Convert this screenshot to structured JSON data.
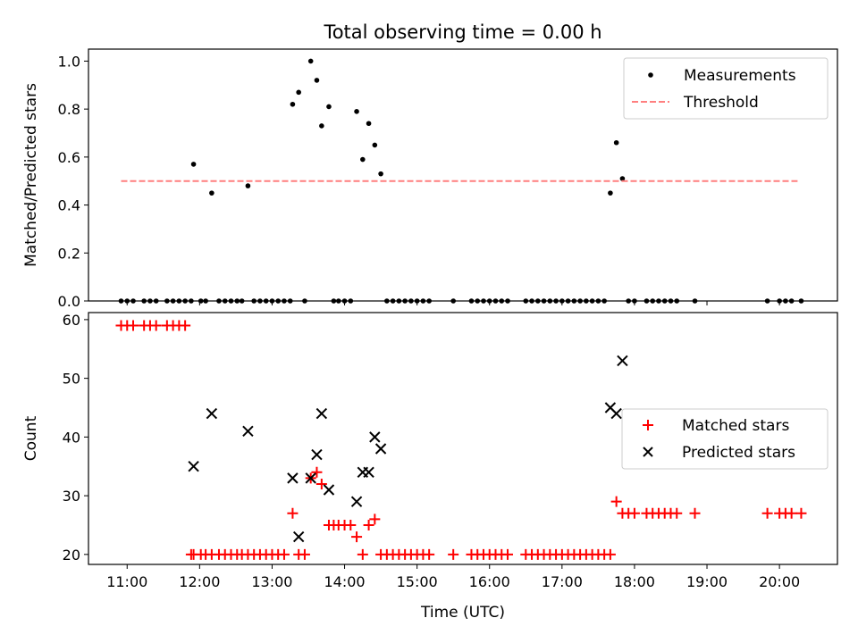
{
  "figure": {
    "title": "Total observing time = 0.00 h"
  },
  "chart_data": [
    {
      "type": "scatter",
      "title": "Total observing time = 0.00 h",
      "ylabel": "Matched/Predicted stars",
      "xlabel": "",
      "xlim": [
        "10:28",
        "20:48"
      ],
      "ylim": [
        0,
        1.05
      ],
      "yticks": [
        0.0,
        0.2,
        0.4,
        0.6,
        0.8,
        1.0
      ],
      "ytick_labels": [
        "0.0",
        "0.2",
        "0.4",
        "0.6",
        "0.8",
        "1.0"
      ],
      "xticks": [
        "11:00",
        "12:00",
        "13:00",
        "14:00",
        "15:00",
        "16:00",
        "17:00",
        "18:00",
        "19:00",
        "20:00"
      ],
      "show_xtick_labels": false,
      "legend": {
        "position": "upper right",
        "entries": [
          "Measurements",
          "Threshold"
        ]
      },
      "series": [
        {
          "name": "Measurements",
          "kind": "scatter",
          "color": "#000000",
          "points": [
            {
              "x": "10:55",
              "y": 0.0
            },
            {
              "x": "11:00",
              "y": 0.0
            },
            {
              "x": "11:05",
              "y": 0.0
            },
            {
              "x": "11:14",
              "y": 0.0
            },
            {
              "x": "11:19",
              "y": 0.0
            },
            {
              "x": "11:24",
              "y": 0.0
            },
            {
              "x": "11:33",
              "y": 0.0
            },
            {
              "x": "11:38",
              "y": 0.0
            },
            {
              "x": "11:43",
              "y": 0.0
            },
            {
              "x": "11:48",
              "y": 0.0
            },
            {
              "x": "11:53",
              "y": 0.0
            },
            {
              "x": "11:55",
              "y": 0.57
            },
            {
              "x": "12:01",
              "y": 0.0
            },
            {
              "x": "12:05",
              "y": 0.0
            },
            {
              "x": "12:10",
              "y": 0.45
            },
            {
              "x": "12:16",
              "y": 0.0
            },
            {
              "x": "12:21",
              "y": 0.0
            },
            {
              "x": "12:26",
              "y": 0.0
            },
            {
              "x": "12:31",
              "y": 0.0
            },
            {
              "x": "12:35",
              "y": 0.0
            },
            {
              "x": "12:40",
              "y": 0.48
            },
            {
              "x": "12:45",
              "y": 0.0
            },
            {
              "x": "12:50",
              "y": 0.0
            },
            {
              "x": "12:55",
              "y": 0.0
            },
            {
              "x": "13:00",
              "y": 0.0
            },
            {
              "x": "13:05",
              "y": 0.0
            },
            {
              "x": "13:10",
              "y": 0.0
            },
            {
              "x": "13:15",
              "y": 0.0
            },
            {
              "x": "13:17",
              "y": 0.82
            },
            {
              "x": "13:22",
              "y": 0.87
            },
            {
              "x": "13:27",
              "y": 0.0
            },
            {
              "x": "13:32",
              "y": 1.0
            },
            {
              "x": "13:37",
              "y": 0.92
            },
            {
              "x": "13:41",
              "y": 0.73
            },
            {
              "x": "13:47",
              "y": 0.81
            },
            {
              "x": "13:51",
              "y": 0.0
            },
            {
              "x": "13:55",
              "y": 0.0
            },
            {
              "x": "14:00",
              "y": 0.0
            },
            {
              "x": "14:05",
              "y": 0.0
            },
            {
              "x": "14:10",
              "y": 0.79
            },
            {
              "x": "14:15",
              "y": 0.59
            },
            {
              "x": "14:20",
              "y": 0.74
            },
            {
              "x": "14:25",
              "y": 0.65
            },
            {
              "x": "14:30",
              "y": 0.53
            },
            {
              "x": "14:35",
              "y": 0.0
            },
            {
              "x": "14:40",
              "y": 0.0
            },
            {
              "x": "14:45",
              "y": 0.0
            },
            {
              "x": "14:50",
              "y": 0.0
            },
            {
              "x": "14:55",
              "y": 0.0
            },
            {
              "x": "15:00",
              "y": 0.0
            },
            {
              "x": "15:05",
              "y": 0.0
            },
            {
              "x": "15:10",
              "y": 0.0
            },
            {
              "x": "15:30",
              "y": 0.0
            },
            {
              "x": "15:45",
              "y": 0.0
            },
            {
              "x": "15:50",
              "y": 0.0
            },
            {
              "x": "15:55",
              "y": 0.0
            },
            {
              "x": "16:00",
              "y": 0.0
            },
            {
              "x": "16:05",
              "y": 0.0
            },
            {
              "x": "16:10",
              "y": 0.0
            },
            {
              "x": "16:15",
              "y": 0.0
            },
            {
              "x": "16:30",
              "y": 0.0
            },
            {
              "x": "16:35",
              "y": 0.0
            },
            {
              "x": "16:40",
              "y": 0.0
            },
            {
              "x": "16:45",
              "y": 0.0
            },
            {
              "x": "16:50",
              "y": 0.0
            },
            {
              "x": "16:55",
              "y": 0.0
            },
            {
              "x": "17:00",
              "y": 0.0
            },
            {
              "x": "17:05",
              "y": 0.0
            },
            {
              "x": "17:10",
              "y": 0.0
            },
            {
              "x": "17:15",
              "y": 0.0
            },
            {
              "x": "17:20",
              "y": 0.0
            },
            {
              "x": "17:25",
              "y": 0.0
            },
            {
              "x": "17:30",
              "y": 0.0
            },
            {
              "x": "17:35",
              "y": 0.0
            },
            {
              "x": "17:40",
              "y": 0.45
            },
            {
              "x": "17:45",
              "y": 0.66
            },
            {
              "x": "17:50",
              "y": 0.51
            },
            {
              "x": "17:55",
              "y": 0.0
            },
            {
              "x": "18:00",
              "y": 0.0
            },
            {
              "x": "18:10",
              "y": 0.0
            },
            {
              "x": "18:15",
              "y": 0.0
            },
            {
              "x": "18:20",
              "y": 0.0
            },
            {
              "x": "18:25",
              "y": 0.0
            },
            {
              "x": "18:30",
              "y": 0.0
            },
            {
              "x": "18:35",
              "y": 0.0
            },
            {
              "x": "18:50",
              "y": 0.0
            },
            {
              "x": "19:50",
              "y": 0.0
            },
            {
              "x": "20:00",
              "y": 0.0
            },
            {
              "x": "20:05",
              "y": 0.0
            },
            {
              "x": "20:10",
              "y": 0.0
            },
            {
              "x": "20:18",
              "y": 0.0
            }
          ]
        },
        {
          "name": "Threshold",
          "kind": "line",
          "style": "dashed",
          "color": "#ff7f7f",
          "points": [
            {
              "x": "10:55",
              "y": 0.5
            },
            {
              "x": "20:15",
              "y": 0.5
            }
          ]
        }
      ]
    },
    {
      "type": "scatter",
      "title": "",
      "ylabel": "Count",
      "xlabel": "Time (UTC)",
      "xlim": [
        "10:28",
        "20:48"
      ],
      "ylim": [
        18.3,
        61.2
      ],
      "yticks": [
        20,
        30,
        40,
        50,
        60
      ],
      "ytick_labels": [
        "20",
        "30",
        "40",
        "50",
        "60"
      ],
      "xticks": [
        "11:00",
        "12:00",
        "13:00",
        "14:00",
        "15:00",
        "16:00",
        "17:00",
        "18:00",
        "19:00",
        "20:00"
      ],
      "xtick_labels": [
        "11:00",
        "12:00",
        "13:00",
        "14:00",
        "15:00",
        "16:00",
        "17:00",
        "18:00",
        "19:00",
        "20:00"
      ],
      "show_xtick_labels": true,
      "legend": {
        "position": "center right",
        "entries": [
          "Matched stars",
          "Predicted stars"
        ]
      },
      "series": [
        {
          "name": "Matched stars",
          "kind": "scatter",
          "marker": "plus",
          "color": "#ff0000",
          "points": [
            {
              "x": "10:55",
              "y": 59
            },
            {
              "x": "11:00",
              "y": 59
            },
            {
              "x": "11:05",
              "y": 59
            },
            {
              "x": "11:14",
              "y": 59
            },
            {
              "x": "11:19",
              "y": 59
            },
            {
              "x": "11:24",
              "y": 59
            },
            {
              "x": "11:33",
              "y": 59
            },
            {
              "x": "11:38",
              "y": 59
            },
            {
              "x": "11:43",
              "y": 59
            },
            {
              "x": "11:48",
              "y": 59
            },
            {
              "x": "11:53",
              "y": 20
            },
            {
              "x": "11:55",
              "y": 20
            },
            {
              "x": "12:01",
              "y": 20
            },
            {
              "x": "12:05",
              "y": 20
            },
            {
              "x": "12:10",
              "y": 20
            },
            {
              "x": "12:16",
              "y": 20
            },
            {
              "x": "12:21",
              "y": 20
            },
            {
              "x": "12:26",
              "y": 20
            },
            {
              "x": "12:31",
              "y": 20
            },
            {
              "x": "12:35",
              "y": 20
            },
            {
              "x": "12:40",
              "y": 20
            },
            {
              "x": "12:45",
              "y": 20
            },
            {
              "x": "12:50",
              "y": 20
            },
            {
              "x": "12:55",
              "y": 20
            },
            {
              "x": "13:00",
              "y": 20
            },
            {
              "x": "13:05",
              "y": 20
            },
            {
              "x": "13:10",
              "y": 20
            },
            {
              "x": "13:17",
              "y": 27
            },
            {
              "x": "13:22",
              "y": 20
            },
            {
              "x": "13:27",
              "y": 20
            },
            {
              "x": "13:32",
              "y": 33
            },
            {
              "x": "13:37",
              "y": 34
            },
            {
              "x": "13:41",
              "y": 32
            },
            {
              "x": "13:47",
              "y": 25
            },
            {
              "x": "13:51",
              "y": 25
            },
            {
              "x": "13:55",
              "y": 25
            },
            {
              "x": "14:00",
              "y": 25
            },
            {
              "x": "14:05",
              "y": 25
            },
            {
              "x": "14:10",
              "y": 23
            },
            {
              "x": "14:15",
              "y": 20
            },
            {
              "x": "14:20",
              "y": 25
            },
            {
              "x": "14:25",
              "y": 26
            },
            {
              "x": "14:30",
              "y": 20
            },
            {
              "x": "14:35",
              "y": 20
            },
            {
              "x": "14:40",
              "y": 20
            },
            {
              "x": "14:45",
              "y": 20
            },
            {
              "x": "14:50",
              "y": 20
            },
            {
              "x": "14:55",
              "y": 20
            },
            {
              "x": "15:00",
              "y": 20
            },
            {
              "x": "15:05",
              "y": 20
            },
            {
              "x": "15:10",
              "y": 20
            },
            {
              "x": "15:30",
              "y": 20
            },
            {
              "x": "15:45",
              "y": 20
            },
            {
              "x": "15:50",
              "y": 20
            },
            {
              "x": "15:55",
              "y": 20
            },
            {
              "x": "16:00",
              "y": 20
            },
            {
              "x": "16:05",
              "y": 20
            },
            {
              "x": "16:10",
              "y": 20
            },
            {
              "x": "16:15",
              "y": 20
            },
            {
              "x": "16:30",
              "y": 20
            },
            {
              "x": "16:35",
              "y": 20
            },
            {
              "x": "16:40",
              "y": 20
            },
            {
              "x": "16:45",
              "y": 20
            },
            {
              "x": "16:50",
              "y": 20
            },
            {
              "x": "16:55",
              "y": 20
            },
            {
              "x": "17:00",
              "y": 20
            },
            {
              "x": "17:05",
              "y": 20
            },
            {
              "x": "17:10",
              "y": 20
            },
            {
              "x": "17:15",
              "y": 20
            },
            {
              "x": "17:20",
              "y": 20
            },
            {
              "x": "17:25",
              "y": 20
            },
            {
              "x": "17:30",
              "y": 20
            },
            {
              "x": "17:35",
              "y": 20
            },
            {
              "x": "17:40",
              "y": 20
            },
            {
              "x": "17:45",
              "y": 29
            },
            {
              "x": "17:50",
              "y": 27
            },
            {
              "x": "17:55",
              "y": 27
            },
            {
              "x": "18:00",
              "y": 27
            },
            {
              "x": "18:10",
              "y": 27
            },
            {
              "x": "18:15",
              "y": 27
            },
            {
              "x": "18:20",
              "y": 27
            },
            {
              "x": "18:25",
              "y": 27
            },
            {
              "x": "18:30",
              "y": 27
            },
            {
              "x": "18:35",
              "y": 27
            },
            {
              "x": "18:50",
              "y": 27
            },
            {
              "x": "19:50",
              "y": 27
            },
            {
              "x": "20:00",
              "y": 27
            },
            {
              "x": "20:05",
              "y": 27
            },
            {
              "x": "20:10",
              "y": 27
            },
            {
              "x": "20:18",
              "y": 27
            }
          ]
        },
        {
          "name": "Predicted stars",
          "kind": "scatter",
          "marker": "x",
          "color": "#000000",
          "points": [
            {
              "x": "11:55",
              "y": 35
            },
            {
              "x": "12:10",
              "y": 44
            },
            {
              "x": "12:40",
              "y": 41
            },
            {
              "x": "13:17",
              "y": 33
            },
            {
              "x": "13:22",
              "y": 23
            },
            {
              "x": "13:32",
              "y": 33
            },
            {
              "x": "13:37",
              "y": 37
            },
            {
              "x": "13:41",
              "y": 44
            },
            {
              "x": "13:47",
              "y": 31
            },
            {
              "x": "14:10",
              "y": 29
            },
            {
              "x": "14:15",
              "y": 34
            },
            {
              "x": "14:20",
              "y": 34
            },
            {
              "x": "14:25",
              "y": 40
            },
            {
              "x": "14:30",
              "y": 38
            },
            {
              "x": "17:40",
              "y": 45
            },
            {
              "x": "17:45",
              "y": 44
            },
            {
              "x": "17:50",
              "y": 53
            }
          ]
        }
      ]
    }
  ]
}
